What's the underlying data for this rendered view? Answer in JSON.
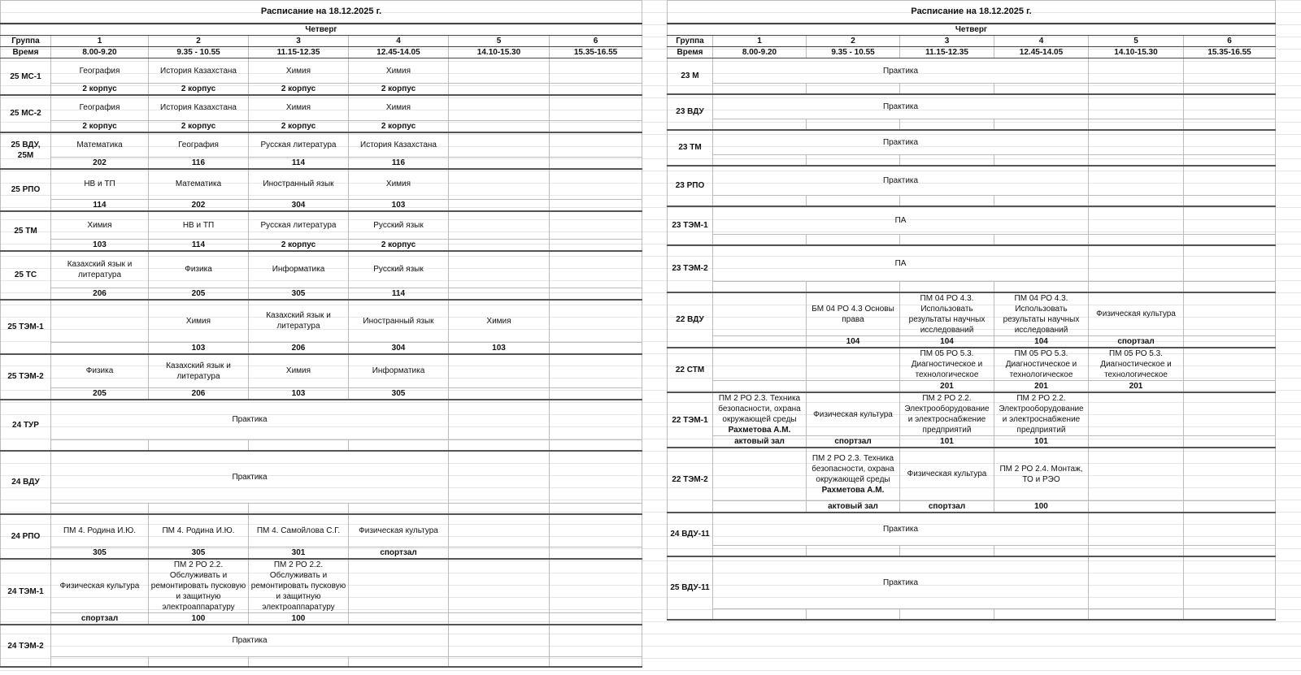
{
  "left": {
    "title": "Расписание на 18.12.2025 г.",
    "day": "Четверг",
    "group_label": "Группа",
    "time_label": "Время",
    "pairs": [
      "1",
      "2",
      "3",
      "4",
      "5",
      "6"
    ],
    "times": [
      "8.00-9.20",
      "9.35 - 10.55",
      "11.15-12.35",
      "12.45-14.05",
      "14.10-15.30",
      "15.35-16.55"
    ],
    "rows": [
      {
        "group": "25 МС-1",
        "cells": [
          {
            "t": "География"
          },
          {
            "t": "История Казахстана"
          },
          {
            "t": "Химия"
          },
          {
            "t": "Химия"
          },
          {
            "t": ""
          },
          {
            "t": ""
          }
        ],
        "rooms": [
          "2 корпус",
          "2 корпус",
          "2 корпус",
          "2 корпус",
          "",
          ""
        ]
      },
      {
        "group": "25 МС-2",
        "cells": [
          {
            "t": "География"
          },
          {
            "t": "История Казахстана"
          },
          {
            "t": "Химия"
          },
          {
            "t": "Химия"
          },
          {
            "t": ""
          },
          {
            "t": ""
          }
        ],
        "rooms": [
          "2 корпус",
          "2 корпус",
          "2 корпус",
          "2 корпус",
          "",
          ""
        ]
      },
      {
        "group": "25 ВДУ, 25М",
        "cells": [
          {
            "t": "Математика"
          },
          {
            "t": "География"
          },
          {
            "t": "Русская литература"
          },
          {
            "t": "История Казахстана"
          },
          {
            "t": ""
          },
          {
            "t": ""
          }
        ],
        "rooms": [
          "202",
          "116",
          "114",
          "116",
          "",
          ""
        ]
      },
      {
        "group": "25 РПО",
        "cells": [
          {
            "t": "НВ и ТП"
          },
          {
            "t": "Математика"
          },
          {
            "t": "Иностранный язык"
          },
          {
            "t": "Химия"
          },
          {
            "t": ""
          },
          {
            "t": ""
          }
        ],
        "rooms": [
          "114",
          "202",
          "304",
          "103",
          "",
          ""
        ]
      },
      {
        "group": "25 ТМ",
        "cells": [
          {
            "t": "Химия"
          },
          {
            "t": "НВ и ТП"
          },
          {
            "t": "Русская литература"
          },
          {
            "t": "Русский язык"
          },
          {
            "t": ""
          },
          {
            "t": ""
          }
        ],
        "rooms": [
          "103",
          "114",
          "2 корпус",
          "2 корпус",
          "",
          ""
        ]
      },
      {
        "group": "25 ТС",
        "cells": [
          {
            "t": "Казахский язык и литература"
          },
          {
            "t": "Физика"
          },
          {
            "t": "Информатика"
          },
          {
            "t": "Русский язык"
          },
          {
            "t": ""
          },
          {
            "t": ""
          }
        ],
        "rooms": [
          "206",
          "205",
          "305",
          "114",
          "",
          ""
        ]
      },
      {
        "group": "25 ТЭМ-1",
        "cells": [
          {
            "t": ""
          },
          {
            "t": "Химия"
          },
          {
            "t": "Казахский язык и литература"
          },
          {
            "t": "Иностранный язык"
          },
          {
            "t": "Химия"
          },
          {
            "t": ""
          }
        ],
        "rooms": [
          "",
          "103",
          "206",
          "304",
          "103",
          ""
        ]
      },
      {
        "group": "25 ТЭМ-2",
        "cells": [
          {
            "t": "Физика"
          },
          {
            "t": "Казахский язык и литература"
          },
          {
            "t": "Химия"
          },
          {
            "t": "Информатика"
          },
          {
            "t": ""
          },
          {
            "t": ""
          }
        ],
        "rooms": [
          "205",
          "206",
          "103",
          "305",
          "",
          ""
        ]
      },
      {
        "group": "24 ТУР",
        "cells": [
          {
            "t": "Практика",
            "span": 4
          },
          {
            "t": ""
          },
          {
            "t": ""
          }
        ],
        "rooms": [
          "",
          "",
          "",
          "",
          "",
          ""
        ]
      },
      {
        "group": "24 ВДУ",
        "cells": [
          {
            "t": "Практика",
            "span": 4
          },
          {
            "t": ""
          },
          {
            "t": ""
          }
        ],
        "rooms": [
          "",
          "",
          "",
          "",
          "",
          ""
        ]
      },
      {
        "group": "24 РПО",
        "cells": [
          {
            "t": "ПМ 4. Родина И.Ю."
          },
          {
            "t": "ПМ 4. Родина И.Ю."
          },
          {
            "t": "ПМ 4. Самойлова С.Г."
          },
          {
            "t": "Физическая культура"
          },
          {
            "t": ""
          },
          {
            "t": ""
          }
        ],
        "rooms": [
          "305",
          "305",
          "301",
          "спортзал",
          "",
          ""
        ]
      },
      {
        "group": "24 ТЭМ-1",
        "cells": [
          {
            "t": "Физическая культура"
          },
          {
            "t": "ПМ 2 РО 2.2. Обслуживать и ремонтировать пусковую и защитную электроаппаратуру"
          },
          {
            "t": "ПМ 2 РО 2.2. Обслуживать и ремонтировать пусковую и защитную электроаппаратуру"
          },
          {
            "t": ""
          },
          {
            "t": ""
          },
          {
            "t": ""
          }
        ],
        "rooms": [
          "спортзал",
          "100",
          "100",
          "",
          "",
          ""
        ]
      },
      {
        "group": "24 ТЭМ-2",
        "cells": [
          {
            "t": "Практика",
            "span": 4
          },
          {
            "t": ""
          },
          {
            "t": ""
          }
        ],
        "rooms": [
          "",
          "",
          "",
          "",
          "",
          ""
        ]
      }
    ]
  },
  "right": {
    "title": "Расписание на 18.12.2025 г.",
    "day": "Четверг",
    "group_label": "Группа",
    "time_label": "Время",
    "pairs": [
      "1",
      "2",
      "3",
      "4",
      "5",
      "6"
    ],
    "times": [
      "8.00-9.20",
      "9.35 - 10.55",
      "11.15-12.35",
      "12.45-14.05",
      "14.10-15.30",
      "15.35-16.55"
    ],
    "rows": [
      {
        "group": "23 М",
        "cells": [
          {
            "t": "Практика",
            "span": 4
          },
          {
            "t": ""
          },
          {
            "t": ""
          }
        ],
        "rooms": [
          "",
          "",
          "",
          "",
          "",
          ""
        ]
      },
      {
        "group": "23 ВДУ",
        "cells": [
          {
            "t": "Практика",
            "span": 4
          },
          {
            "t": ""
          },
          {
            "t": ""
          }
        ],
        "rooms": [
          "",
          "",
          "",
          "",
          "",
          ""
        ]
      },
      {
        "group": "23 ТМ",
        "cells": [
          {
            "t": "Практика",
            "span": 4
          },
          {
            "t": ""
          },
          {
            "t": ""
          }
        ],
        "rooms": [
          "",
          "",
          "",
          "",
          "",
          ""
        ]
      },
      {
        "group": "23 РПО",
        "cells": [
          {
            "t": "Практика",
            "span": 4
          },
          {
            "t": ""
          },
          {
            "t": ""
          }
        ],
        "rooms": [
          "",
          "",
          "",
          "",
          "",
          ""
        ]
      },
      {
        "group": "23 ТЭМ-1",
        "cells": [
          {
            "t": "ПА",
            "span": 4
          },
          {
            "t": ""
          },
          {
            "t": ""
          }
        ],
        "rooms": [
          "",
          "",
          "",
          "",
          "",
          ""
        ]
      },
      {
        "group": "23 ТЭМ-2",
        "cells": [
          {
            "t": "ПА",
            "span": 4
          },
          {
            "t": ""
          },
          {
            "t": ""
          }
        ],
        "rooms": [
          "",
          "",
          "",
          "",
          "",
          ""
        ]
      },
      {
        "group": "22 ВДУ",
        "cells": [
          {
            "t": ""
          },
          {
            "t": "БМ 04 РО 4.3 Основы права"
          },
          {
            "t": "ПМ 04 РО 4.3. Использовать результаты научных исследований"
          },
          {
            "t": "ПМ 04 РО 4.3. Использовать результаты научных исследований"
          },
          {
            "t": "Физическая культура"
          },
          {
            "t": ""
          }
        ],
        "rooms": [
          "",
          "104",
          "104",
          "104",
          "спортзал",
          ""
        ]
      },
      {
        "group": "22 СТМ",
        "cells": [
          {
            "t": ""
          },
          {
            "t": ""
          },
          {
            "t": "ПМ 05 РО 5.3. Диагностическое и технологическое"
          },
          {
            "t": "ПМ 05 РО 5.3. Диагностическое и технологическое"
          },
          {
            "t": "ПМ 05 РО 5.3. Диагностическое и технологическое"
          },
          {
            "t": ""
          }
        ],
        "rooms": [
          "",
          "",
          "201",
          "201",
          "201",
          ""
        ]
      },
      {
        "group": "22 ТЭМ-1",
        "cells": [
          {
            "t": "ПМ 2 РО 2.3. Техника безопасности, охрана окружающей среды",
            "teacher": "Рахметова А.М."
          },
          {
            "t": "Физическая культура"
          },
          {
            "t": "ПМ 2 РО 2.2. Электрооборудование и электроснабжение предприятий"
          },
          {
            "t": "ПМ 2 РО 2.2. Электрооборудование и электроснабжение предприятий"
          },
          {
            "t": ""
          },
          {
            "t": ""
          }
        ],
        "rooms": [
          "актовый зал",
          "спортзал",
          "101",
          "101",
          "",
          ""
        ]
      },
      {
        "group": "22 ТЭМ-2",
        "cells": [
          {
            "t": ""
          },
          {
            "t": "ПМ 2 РО 2.3. Техника безопасности, охрана окружающей среды",
            "teacher": "Рахметова А.М."
          },
          {
            "t": "Физическая культура"
          },
          {
            "t": "ПМ 2 РО 2.4.  Монтаж, ТО и РЭО"
          },
          {
            "t": ""
          },
          {
            "t": ""
          }
        ],
        "rooms": [
          "",
          "актовый зал",
          "спортзал",
          "100",
          "",
          ""
        ]
      },
      {
        "group": "24 ВДУ-11",
        "cells": [
          {
            "t": "Практика",
            "span": 4
          },
          {
            "t": ""
          },
          {
            "t": ""
          }
        ],
        "rooms": [
          "",
          "",
          "",
          "",
          "",
          ""
        ]
      },
      {
        "group": "25 ВДУ-11",
        "cells": [
          {
            "t": "Практика",
            "span": 4
          },
          {
            "t": ""
          },
          {
            "t": ""
          }
        ],
        "rooms": [
          "",
          "",
          "",
          "",
          "",
          ""
        ]
      }
    ]
  }
}
